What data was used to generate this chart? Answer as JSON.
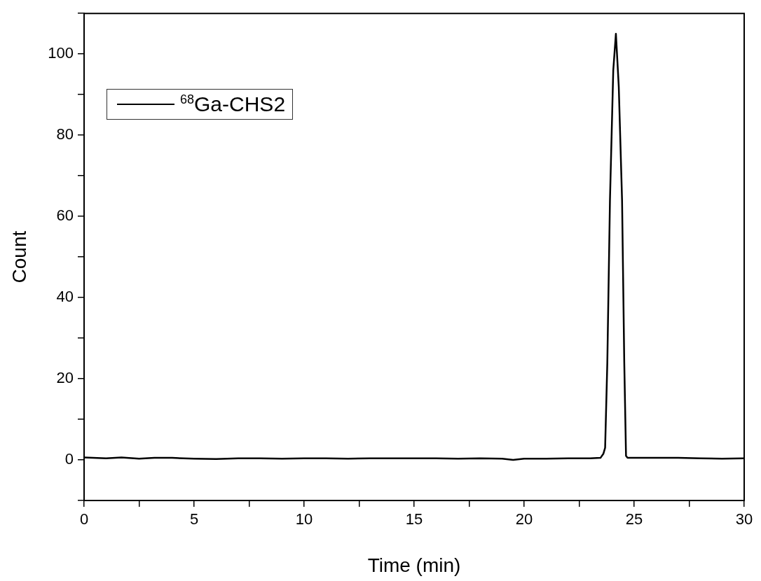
{
  "chart_data": {
    "type": "line",
    "xlabel": "Time (min)",
    "ylabel": "Count",
    "xlim": [
      0,
      30
    ],
    "xticks": [
      0,
      {
        "value": 2.5,
        "label": null
      },
      5,
      {
        "value": 7.5,
        "label": null
      },
      10,
      {
        "value": 12.5,
        "label": null
      },
      15,
      {
        "value": 17.5,
        "label": null
      },
      20,
      {
        "value": 22.5,
        "label": null
      },
      25,
      {
        "value": 27.5,
        "label": null
      },
      30
    ],
    "ylim": [
      -10,
      110
    ],
    "yticks": [
      {
        "value": -10,
        "label": null
      },
      0,
      {
        "value": 10,
        "label": null
      },
      20,
      {
        "value": 30,
        "label": null
      },
      40,
      {
        "value": 50,
        "label": null
      },
      60,
      {
        "value": 70,
        "label": null
      },
      80,
      {
        "value": 90,
        "label": null
      },
      100,
      {
        "value": 110,
        "label": null
      }
    ],
    "grid": false,
    "legend": "top left",
    "marker": "none",
    "line_style": "solid",
    "series": [
      {
        "name": "$^{68}$Ga-CHS2",
        "color": "#000000",
        "x": [
          0,
          1,
          1.7,
          2.5,
          3.2,
          4,
          5,
          6,
          7,
          8,
          9,
          10,
          11,
          12,
          13,
          14,
          15,
          16,
          17,
          18,
          19,
          19.5,
          20,
          21,
          22,
          23,
          23.47,
          23.6,
          23.68,
          23.78,
          23.9,
          24.05,
          24.17,
          24.3,
          24.45,
          24.55,
          24.63,
          24.7,
          25,
          26,
          27,
          28,
          29,
          30
        ],
        "values": [
          0.6,
          0.4,
          0.6,
          0.3,
          0.5,
          0.5,
          0.3,
          0.2,
          0.4,
          0.4,
          0.3,
          0.4,
          0.4,
          0.3,
          0.4,
          0.4,
          0.4,
          0.4,
          0.3,
          0.4,
          0.3,
          0,
          0.3,
          0.3,
          0.4,
          0.4,
          0.5,
          1.5,
          3,
          24,
          64,
          96,
          105,
          92,
          64,
          24,
          1,
          0.5,
          0.5,
          0.5,
          0.5,
          0.4,
          0.3,
          0.4
        ]
      }
    ]
  }
}
